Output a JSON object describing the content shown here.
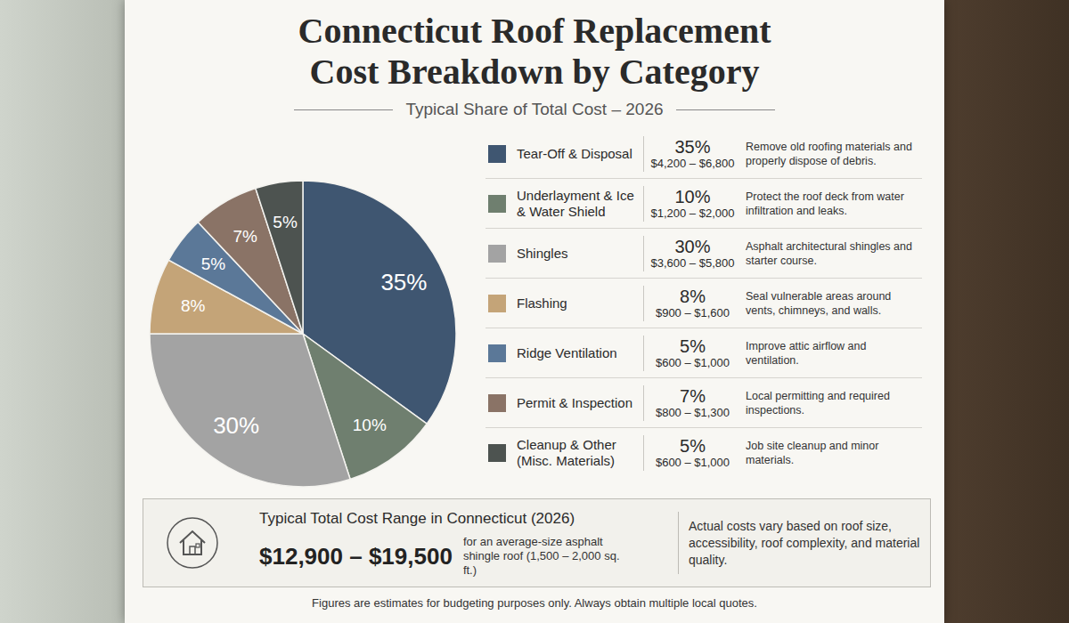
{
  "chart_data": {
    "type": "pie",
    "title": "Connecticut Roof Replacement Cost Breakdown by Category",
    "subtitle": "Typical Share of Total Cost – 2026",
    "categories": [
      "Tear-Off & Disposal",
      "Underlayment & Ice & Water Shield",
      "Shingles",
      "Flashing",
      "Ridge Ventilation",
      "Permit & Inspection",
      "Cleanup & Other (Misc. Materials)"
    ],
    "values": [
      35,
      10,
      30,
      8,
      5,
      7,
      5
    ],
    "value_labels": [
      "35%",
      "10%",
      "30%",
      "8%",
      "5%",
      "7%",
      "5%"
    ],
    "data_labels": true,
    "colors": [
      "#3f5671",
      "#6f7f6f",
      "#a3a3a3",
      "#c4a478",
      "#5b7898",
      "#8a7366",
      "#4d5350"
    ],
    "cost_ranges": [
      "$4,200 – $6,800",
      "$1,200 – $2,000",
      "$3,600 – $5,800",
      "$900 – $1,600",
      "$600 – $1,000",
      "$800 – $1,300",
      "$600 – $1,000"
    ],
    "descriptions": [
      "Remove old roofing materials and properly dispose of debris.",
      "Protect the roof deck from water infiltration and leaks.",
      "Asphalt architectural shingles and starter course.",
      "Seal vulnerable areas around vents, chimneys, and walls.",
      "Improve attic airflow and ventilation.",
      "Local permitting and required inspections.",
      "Job site cleanup and minor materials."
    ],
    "footer": {
      "heading": "Typical Total Cost Range in Connecticut (2026)",
      "total": "$12,900 – $19,500",
      "total_note": "for an average-size asphalt shingle roof (1,500 – 2,000 sq. ft.)",
      "note": "Actual costs vary based on roof size, accessibility, roof complexity, and material quality."
    },
    "disclaimer": "Figures are estimates for budgeting purposes only. Always obtain multiple local quotes."
  }
}
